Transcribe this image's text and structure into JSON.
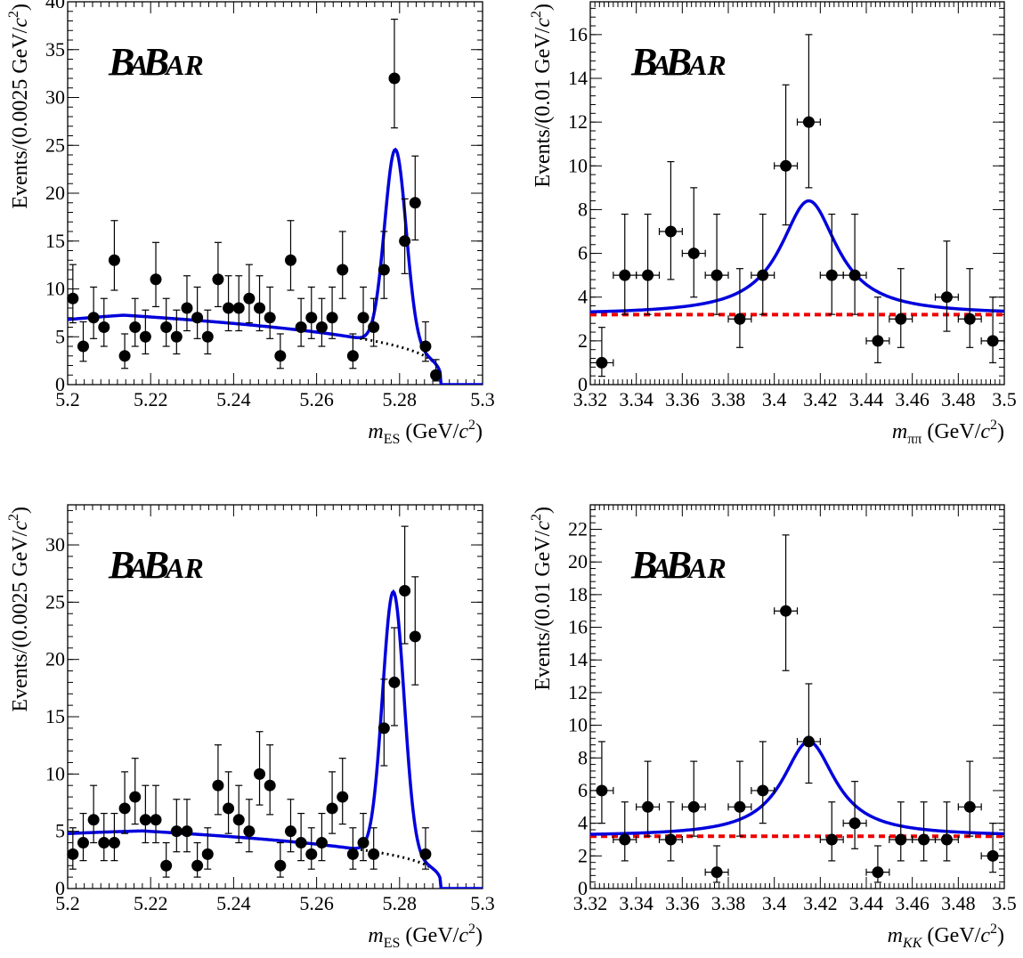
{
  "logo": {
    "b1": "B",
    "a1": "A",
    "b2": "B",
    "ar": "AR"
  },
  "colors": {
    "fit": "#0000dd",
    "background_mes": "#000000",
    "background_mass": "#ee0000",
    "points": "#000000"
  },
  "chart_data": [
    {
      "type": "scatter",
      "panel": "top-left",
      "xlabel": {
        "var": "m",
        "sub": "ES",
        "unit_pre": " (GeV/",
        "unit_c": "c",
        "unit_sup": "2",
        "unit_post": ")"
      },
      "ylabel": {
        "pre": "Events/(0.0025 GeV/",
        "c": "c",
        "sup": "2",
        "post": ")"
      },
      "xlim": [
        5.2,
        5.3
      ],
      "ylim": [
        0,
        40
      ],
      "xticks": [
        5.2,
        5.22,
        5.24,
        5.26,
        5.28,
        5.3
      ],
      "xtick_labels": [
        "5.2",
        "5.22",
        "5.24",
        "5.26",
        "5.28",
        "5.3"
      ],
      "yticks": [
        0,
        5,
        10,
        15,
        20,
        25,
        30,
        35,
        40
      ],
      "ytick_labels": [
        "0",
        "5",
        "10",
        "15",
        "20",
        "25",
        "30",
        "35",
        "40"
      ],
      "points": [
        {
          "x": 5.20125,
          "y": 9
        },
        {
          "x": 5.20375,
          "y": 4
        },
        {
          "x": 5.20625,
          "y": 7
        },
        {
          "x": 5.20875,
          "y": 6
        },
        {
          "x": 5.21125,
          "y": 13
        },
        {
          "x": 5.21375,
          "y": 3
        },
        {
          "x": 5.21625,
          "y": 6
        },
        {
          "x": 5.21875,
          "y": 5
        },
        {
          "x": 5.22125,
          "y": 11
        },
        {
          "x": 5.22375,
          "y": 6
        },
        {
          "x": 5.22625,
          "y": 5
        },
        {
          "x": 5.22875,
          "y": 8
        },
        {
          "x": 5.23125,
          "y": 7
        },
        {
          "x": 5.23375,
          "y": 5
        },
        {
          "x": 5.23625,
          "y": 11
        },
        {
          "x": 5.23875,
          "y": 8
        },
        {
          "x": 5.24125,
          "y": 8
        },
        {
          "x": 5.24375,
          "y": 9
        },
        {
          "x": 5.24625,
          "y": 8
        },
        {
          "x": 5.24875,
          "y": 7
        },
        {
          "x": 5.25125,
          "y": 3
        },
        {
          "x": 5.25375,
          "y": 13
        },
        {
          "x": 5.25625,
          "y": 6
        },
        {
          "x": 5.25875,
          "y": 7
        },
        {
          "x": 5.26125,
          "y": 6
        },
        {
          "x": 5.26375,
          "y": 7
        },
        {
          "x": 5.26625,
          "y": 12
        },
        {
          "x": 5.26875,
          "y": 3
        },
        {
          "x": 5.27125,
          "y": 7
        },
        {
          "x": 5.27375,
          "y": 6
        },
        {
          "x": 5.27625,
          "y": 12
        },
        {
          "x": 5.27875,
          "y": 32
        },
        {
          "x": 5.28125,
          "y": 15
        },
        {
          "x": 5.28375,
          "y": 19
        },
        {
          "x": 5.28625,
          "y": 4
        },
        {
          "x": 5.28875,
          "y": 1
        }
      ],
      "x_error_bars": false,
      "fit": {
        "kind": "mes",
        "bkg_level": 6.8,
        "bkg_slope": 0.8,
        "peak_mean": 5.279,
        "peak_sigma": 0.0026,
        "peak_height": 20.5,
        "endpoint": 5.29
      }
    },
    {
      "type": "scatter",
      "panel": "top-right",
      "xlabel": {
        "var": "m",
        "sub": "ππ",
        "unit_pre": " (GeV/",
        "unit_c": "c",
        "unit_sup": "2",
        "unit_post": ")"
      },
      "ylabel": {
        "pre": "Events/(0.01 GeV/",
        "c": "c",
        "sup": "2",
        "post": ")"
      },
      "xlim": [
        3.32,
        3.5
      ],
      "ylim": [
        0,
        17.5
      ],
      "xticks": [
        3.32,
        3.34,
        3.36,
        3.38,
        3.4,
        3.42,
        3.44,
        3.46,
        3.48,
        3.5
      ],
      "xtick_labels": [
        "3.32",
        "3.34",
        "3.36",
        "3.38",
        "3.4",
        "3.42",
        "3.44",
        "3.46",
        "3.48",
        "3.5"
      ],
      "yticks": [
        0,
        2,
        4,
        6,
        8,
        10,
        12,
        14,
        16
      ],
      "ytick_labels": [
        "0",
        "2",
        "4",
        "6",
        "8",
        "10",
        "12",
        "14",
        "16"
      ],
      "points": [
        {
          "x": 3.325,
          "y": 1
        },
        {
          "x": 3.335,
          "y": 5
        },
        {
          "x": 3.345,
          "y": 5
        },
        {
          "x": 3.355,
          "y": 7
        },
        {
          "x": 3.365,
          "y": 6
        },
        {
          "x": 3.375,
          "y": 5
        },
        {
          "x": 3.385,
          "y": 3
        },
        {
          "x": 3.395,
          "y": 5
        },
        {
          "x": 3.405,
          "y": 10
        },
        {
          "x": 3.415,
          "y": 12
        },
        {
          "x": 3.425,
          "y": 5
        },
        {
          "x": 3.435,
          "y": 5
        },
        {
          "x": 3.445,
          "y": 2
        },
        {
          "x": 3.455,
          "y": 3
        },
        {
          "x": 3.475,
          "y": 4
        },
        {
          "x": 3.485,
          "y": 3
        },
        {
          "x": 3.495,
          "y": 2
        }
      ],
      "x_error_bars": true,
      "fit": {
        "kind": "mass",
        "bkg_level": 3.2,
        "peak_mean": 3.415,
        "peak_gamma": 0.015,
        "peak_height": 5.2
      }
    },
    {
      "type": "scatter",
      "panel": "bottom-left",
      "xlabel": {
        "var": "m",
        "sub": "ES",
        "unit_pre": " (GeV/",
        "unit_c": "c",
        "unit_sup": "2",
        "unit_post": ")"
      },
      "ylabel": {
        "pre": "Events/(0.0025 GeV/",
        "c": "c",
        "sup": "2",
        "post": ")"
      },
      "xlim": [
        5.2,
        5.3
      ],
      "ylim": [
        0,
        33.5
      ],
      "xticks": [
        5.2,
        5.22,
        5.24,
        5.26,
        5.28,
        5.3
      ],
      "xtick_labels": [
        "5.2",
        "5.22",
        "5.24",
        "5.26",
        "5.28",
        "5.3"
      ],
      "yticks": [
        0,
        5,
        10,
        15,
        20,
        25,
        30
      ],
      "ytick_labels": [
        "0",
        "5",
        "10",
        "15",
        "20",
        "25",
        "30"
      ],
      "points": [
        {
          "x": 5.20125,
          "y": 3
        },
        {
          "x": 5.20375,
          "y": 4
        },
        {
          "x": 5.20625,
          "y": 6
        },
        {
          "x": 5.20875,
          "y": 4
        },
        {
          "x": 5.21125,
          "y": 4
        },
        {
          "x": 5.21375,
          "y": 7
        },
        {
          "x": 5.21625,
          "y": 8
        },
        {
          "x": 5.21875,
          "y": 6
        },
        {
          "x": 5.22125,
          "y": 6
        },
        {
          "x": 5.22375,
          "y": 2
        },
        {
          "x": 5.22625,
          "y": 5
        },
        {
          "x": 5.22875,
          "y": 5
        },
        {
          "x": 5.23125,
          "y": 2
        },
        {
          "x": 5.23375,
          "y": 3
        },
        {
          "x": 5.23625,
          "y": 9
        },
        {
          "x": 5.23875,
          "y": 7
        },
        {
          "x": 5.24125,
          "y": 6
        },
        {
          "x": 5.24375,
          "y": 5
        },
        {
          "x": 5.24625,
          "y": 10
        },
        {
          "x": 5.24875,
          "y": 9
        },
        {
          "x": 5.25125,
          "y": 2
        },
        {
          "x": 5.25375,
          "y": 5
        },
        {
          "x": 5.25625,
          "y": 4
        },
        {
          "x": 5.25875,
          "y": 3
        },
        {
          "x": 5.26125,
          "y": 4
        },
        {
          "x": 5.26375,
          "y": 7
        },
        {
          "x": 5.26625,
          "y": 8
        },
        {
          "x": 5.26875,
          "y": 3
        },
        {
          "x": 5.27125,
          "y": 4
        },
        {
          "x": 5.27375,
          "y": 3
        },
        {
          "x": 5.27625,
          "y": 14
        },
        {
          "x": 5.27875,
          "y": 18
        },
        {
          "x": 5.28125,
          "y": 26
        },
        {
          "x": 5.28375,
          "y": 22
        },
        {
          "x": 5.28625,
          "y": 3
        }
      ],
      "x_error_bars": false,
      "fit": {
        "kind": "mes",
        "bkg_level": 4.8,
        "bkg_slope": 0.6,
        "peak_mean": 5.2785,
        "peak_sigma": 0.0026,
        "peak_height": 23.0,
        "endpoint": 5.29
      }
    },
    {
      "type": "scatter",
      "panel": "bottom-right",
      "xlabel": {
        "var": "m",
        "sub": "KK",
        "unit_pre": " (GeV/",
        "unit_c": "c",
        "unit_sup": "2",
        "unit_post": ")"
      },
      "ylabel": {
        "pre": "Events/(0.01 GeV/",
        "c": "c",
        "sup": "2",
        "post": ")"
      },
      "xlim": [
        3.32,
        3.5
      ],
      "ylim": [
        0,
        23.5
      ],
      "xticks": [
        3.32,
        3.34,
        3.36,
        3.38,
        3.4,
        3.42,
        3.44,
        3.46,
        3.48,
        3.5
      ],
      "xtick_labels": [
        "3.32",
        "3.34",
        "3.36",
        "3.38",
        "3.4",
        "3.42",
        "3.44",
        "3.46",
        "3.48",
        "3.5"
      ],
      "yticks": [
        0,
        2,
        4,
        6,
        8,
        10,
        12,
        14,
        16,
        18,
        20,
        22
      ],
      "ytick_labels": [
        "0",
        "2",
        "4",
        "6",
        "8",
        "10",
        "12",
        "14",
        "16",
        "18",
        "20",
        "22"
      ],
      "points": [
        {
          "x": 3.325,
          "y": 6
        },
        {
          "x": 3.335,
          "y": 3
        },
        {
          "x": 3.345,
          "y": 5
        },
        {
          "x": 3.355,
          "y": 3
        },
        {
          "x": 3.365,
          "y": 5
        },
        {
          "x": 3.375,
          "y": 1
        },
        {
          "x": 3.385,
          "y": 5
        },
        {
          "x": 3.395,
          "y": 6
        },
        {
          "x": 3.405,
          "y": 17
        },
        {
          "x": 3.415,
          "y": 9
        },
        {
          "x": 3.425,
          "y": 3
        },
        {
          "x": 3.435,
          "y": 4
        },
        {
          "x": 3.445,
          "y": 1
        },
        {
          "x": 3.455,
          "y": 3
        },
        {
          "x": 3.465,
          "y": 3
        },
        {
          "x": 3.475,
          "y": 3
        },
        {
          "x": 3.485,
          "y": 5
        },
        {
          "x": 3.495,
          "y": 2
        }
      ],
      "x_error_bars": true,
      "fit": {
        "kind": "mass",
        "bkg_level": 3.2,
        "peak_mean": 3.415,
        "peak_gamma": 0.014,
        "peak_height": 5.8
      }
    }
  ]
}
